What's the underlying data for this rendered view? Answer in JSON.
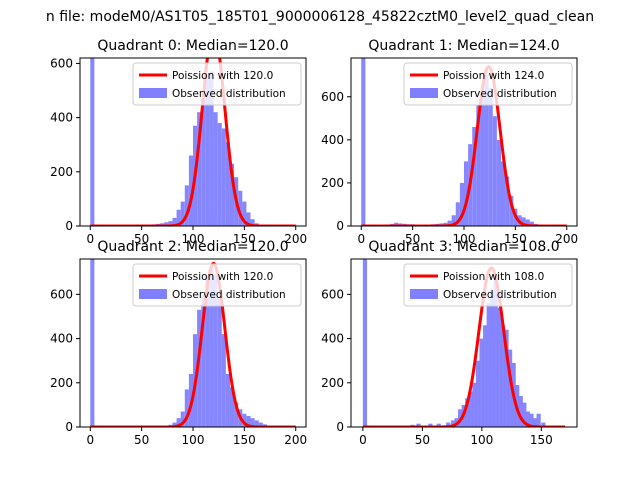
{
  "suptitle": "n file: modeM0/AS1T05_185T01_9000006128_45822cztM0_level2_quad_clean",
  "chart_data": [
    {
      "type": "bar",
      "title": "Quadrant 0: Median=120.0",
      "xlim": [
        -10,
        210
      ],
      "ylim": [
        0,
        620
      ],
      "xticks": [
        0,
        50,
        100,
        150,
        200
      ],
      "yticks": [
        0,
        200,
        400,
        600
      ],
      "legend_position": "top-right",
      "bin_width": 4,
      "hist": {
        "name": "Observed distribution",
        "color": "#7f7fff",
        "x": [
          0,
          56,
          60,
          64,
          68,
          72,
          76,
          80,
          84,
          88,
          92,
          96,
          100,
          104,
          108,
          112,
          116,
          120,
          124,
          128,
          132,
          136,
          140,
          144,
          148,
          152,
          156,
          160,
          164,
          168
        ],
        "values": [
          620,
          4,
          6,
          8,
          10,
          14,
          18,
          30,
          60,
          90,
          150,
          260,
          370,
          420,
          470,
          560,
          570,
          420,
          380,
          360,
          310,
          230,
          180,
          130,
          90,
          50,
          25,
          10,
          5,
          2
        ]
      },
      "fit": {
        "name": "Poission with 120.0",
        "color": "#ff0000",
        "mean": 120,
        "peak": 720,
        "x_start": 0,
        "x_end": 200
      }
    },
    {
      "type": "bar",
      "title": "Quadrant 1: Median=124.0",
      "xlim": [
        -10,
        210
      ],
      "ylim": [
        0,
        780
      ],
      "xticks": [
        0,
        50,
        100,
        150,
        200
      ],
      "yticks": [
        0,
        200,
        400,
        600
      ],
      "legend_position": "top-right",
      "bin_width": 4,
      "hist": {
        "name": "Observed distribution",
        "color": "#7f7fff",
        "x": [
          0,
          28,
          32,
          36,
          40,
          44,
          48,
          52,
          56,
          60,
          64,
          68,
          72,
          76,
          80,
          84,
          88,
          92,
          96,
          100,
          104,
          108,
          112,
          116,
          120,
          124,
          128,
          132,
          136,
          140,
          144,
          148,
          152,
          156,
          160,
          164,
          168
        ],
        "values": [
          780,
          10,
          15,
          12,
          10,
          8,
          8,
          6,
          6,
          6,
          6,
          8,
          10,
          12,
          15,
          25,
          50,
          110,
          200,
          300,
          380,
          460,
          560,
          620,
          700,
          640,
          510,
          400,
          300,
          230,
          140,
          80,
          50,
          40,
          30,
          20,
          10
        ]
      },
      "fit": {
        "name": "Poission with 124.0",
        "color": "#ff0000",
        "mean": 124,
        "peak": 740,
        "x_start": 0,
        "x_end": 200
      }
    },
    {
      "type": "bar",
      "title": "Quadrant 2: Median=120.0",
      "xlim": [
        -10,
        210
      ],
      "ylim": [
        0,
        760
      ],
      "xticks": [
        0,
        50,
        100,
        150,
        200
      ],
      "yticks": [
        0,
        200,
        400,
        600
      ],
      "legend_position": "top-right",
      "bin_width": 4,
      "hist": {
        "name": "Observed distribution",
        "color": "#7f7fff",
        "x": [
          0,
          76,
          80,
          84,
          88,
          92,
          96,
          100,
          104,
          108,
          112,
          116,
          120,
          124,
          128,
          132,
          136,
          140,
          144,
          148,
          152,
          156,
          160,
          164,
          168,
          172
        ],
        "values": [
          760,
          10,
          20,
          40,
          70,
          170,
          240,
          420,
          530,
          600,
          680,
          720,
          690,
          580,
          420,
          240,
          180,
          110,
          80,
          60,
          50,
          40,
          30,
          20,
          12,
          6
        ]
      },
      "fit": {
        "name": "Poission with 120.0",
        "color": "#ff0000",
        "mean": 120,
        "peak": 740,
        "x_start": 0,
        "x_end": 200
      }
    },
    {
      "type": "bar",
      "title": "Quadrant 3: Median=108.0",
      "xlim": [
        -10,
        180
      ],
      "ylim": [
        0,
        760
      ],
      "xticks": [
        0,
        50,
        100,
        150
      ],
      "yticks": [
        0,
        200,
        400,
        600
      ],
      "legend_position": "top-right",
      "bin_width": 3.5,
      "hist": {
        "name": "Observed distribution",
        "color": "#7f7fff",
        "x": [
          0,
          40,
          45,
          55,
          62,
          70,
          74,
          77,
          80,
          83,
          86,
          89,
          92,
          95,
          98,
          101,
          104,
          107,
          110,
          113,
          116,
          119,
          122,
          125,
          128,
          131,
          134,
          137,
          140,
          143,
          146,
          150
        ],
        "values": [
          760,
          10,
          15,
          15,
          15,
          20,
          30,
          40,
          80,
          100,
          130,
          160,
          200,
          300,
          400,
          460,
          560,
          620,
          690,
          540,
          460,
          440,
          350,
          290,
          190,
          140,
          110,
          70,
          60,
          40,
          60,
          20
        ]
      },
      "fit": {
        "name": "Poission with 108.0",
        "color": "#ff0000",
        "mean": 108,
        "peak": 720,
        "x_start": 0,
        "x_end": 170
      }
    }
  ]
}
